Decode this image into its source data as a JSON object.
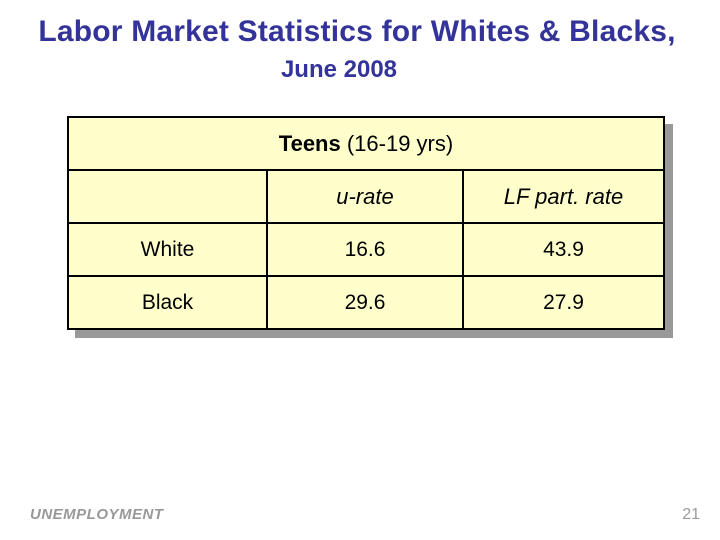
{
  "title": {
    "line1": "Labor Market Statistics for Whites & Blacks,",
    "line2": "June 2008"
  },
  "table": {
    "caption_bold": "Teens",
    "caption_rest": " (16-19 yrs)",
    "columns": [
      "",
      "u-rate",
      "LF part. rate"
    ],
    "rows": [
      {
        "label": "White",
        "u_rate": "16.6",
        "lf_part_rate": "43.9"
      },
      {
        "label": "Black",
        "u_rate": "29.6",
        "lf_part_rate": "27.9"
      }
    ]
  },
  "footer": {
    "left_text": "UNEMPLOYMENT",
    "page_number": "21"
  },
  "colors": {
    "slide_bg": "#ffffff",
    "title_color": "#333399",
    "table_fill": "#ffffcc",
    "table_border": "#000000",
    "shadow_color": "#999999",
    "footer_color": "#999999"
  }
}
